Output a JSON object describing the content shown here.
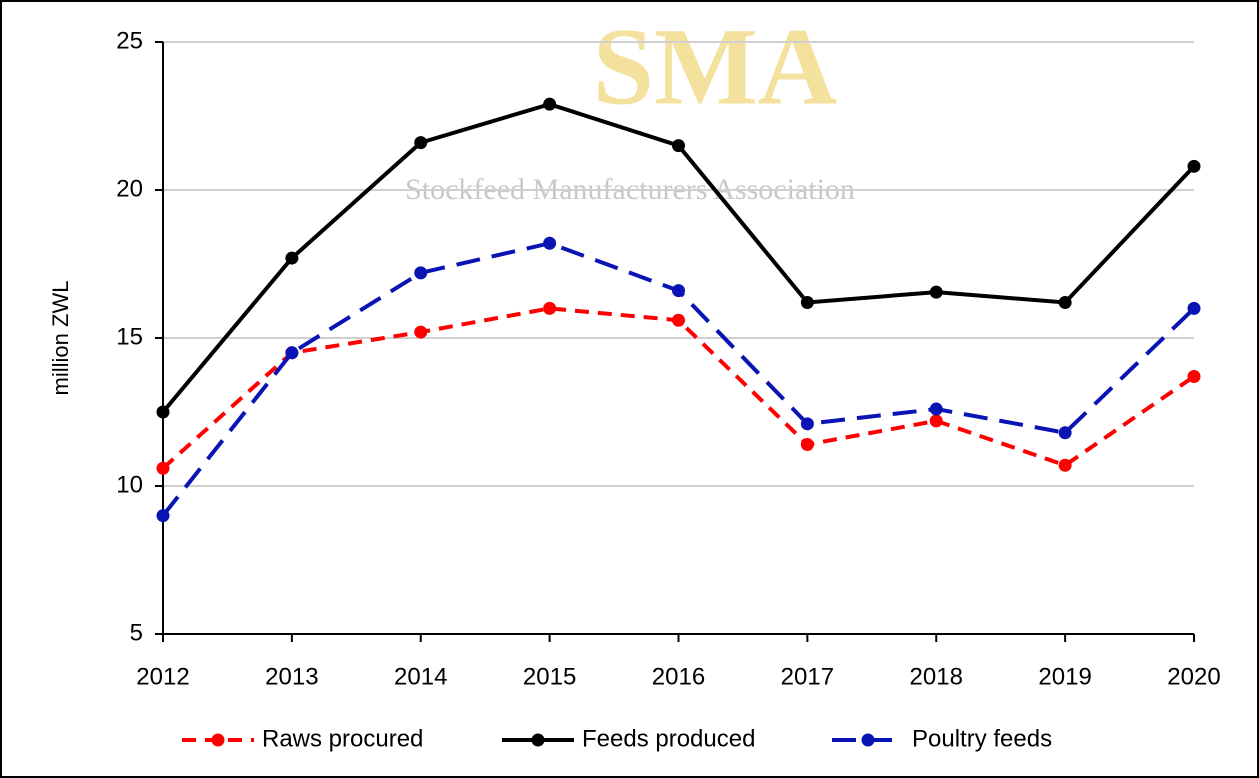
{
  "chart_data": {
    "type": "line",
    "y_label": "million ZWL",
    "watermark": {
      "title": "SMA",
      "subtitle": "Stockfeed Manufacturers Association"
    },
    "categories": [
      "2012",
      "2013",
      "2014",
      "2015",
      "2016",
      "2017",
      "2018",
      "2019",
      "2020"
    ],
    "series": [
      {
        "name": "Raws procured",
        "color": "#ff0000",
        "dash": "dashed",
        "values": [
          10.6,
          14.5,
          15.2,
          16.0,
          15.6,
          11.4,
          12.2,
          10.7,
          13.7
        ]
      },
      {
        "name": "Feeds produced",
        "color": "#000000",
        "dash": "solid",
        "values": [
          12.5,
          17.7,
          21.6,
          22.9,
          21.5,
          16.2,
          16.55,
          16.2,
          20.8
        ]
      },
      {
        "name": "Poultry feeds",
        "color": "#0a14b4",
        "dash": "long-dashed",
        "values": [
          9.0,
          14.5,
          17.2,
          18.2,
          16.6,
          12.1,
          12.6,
          11.8,
          16.0
        ]
      }
    ],
    "ylim": [
      5,
      25
    ],
    "yticks": [
      5,
      10,
      15,
      20,
      25
    ],
    "grid": true,
    "legend": "bottom"
  }
}
